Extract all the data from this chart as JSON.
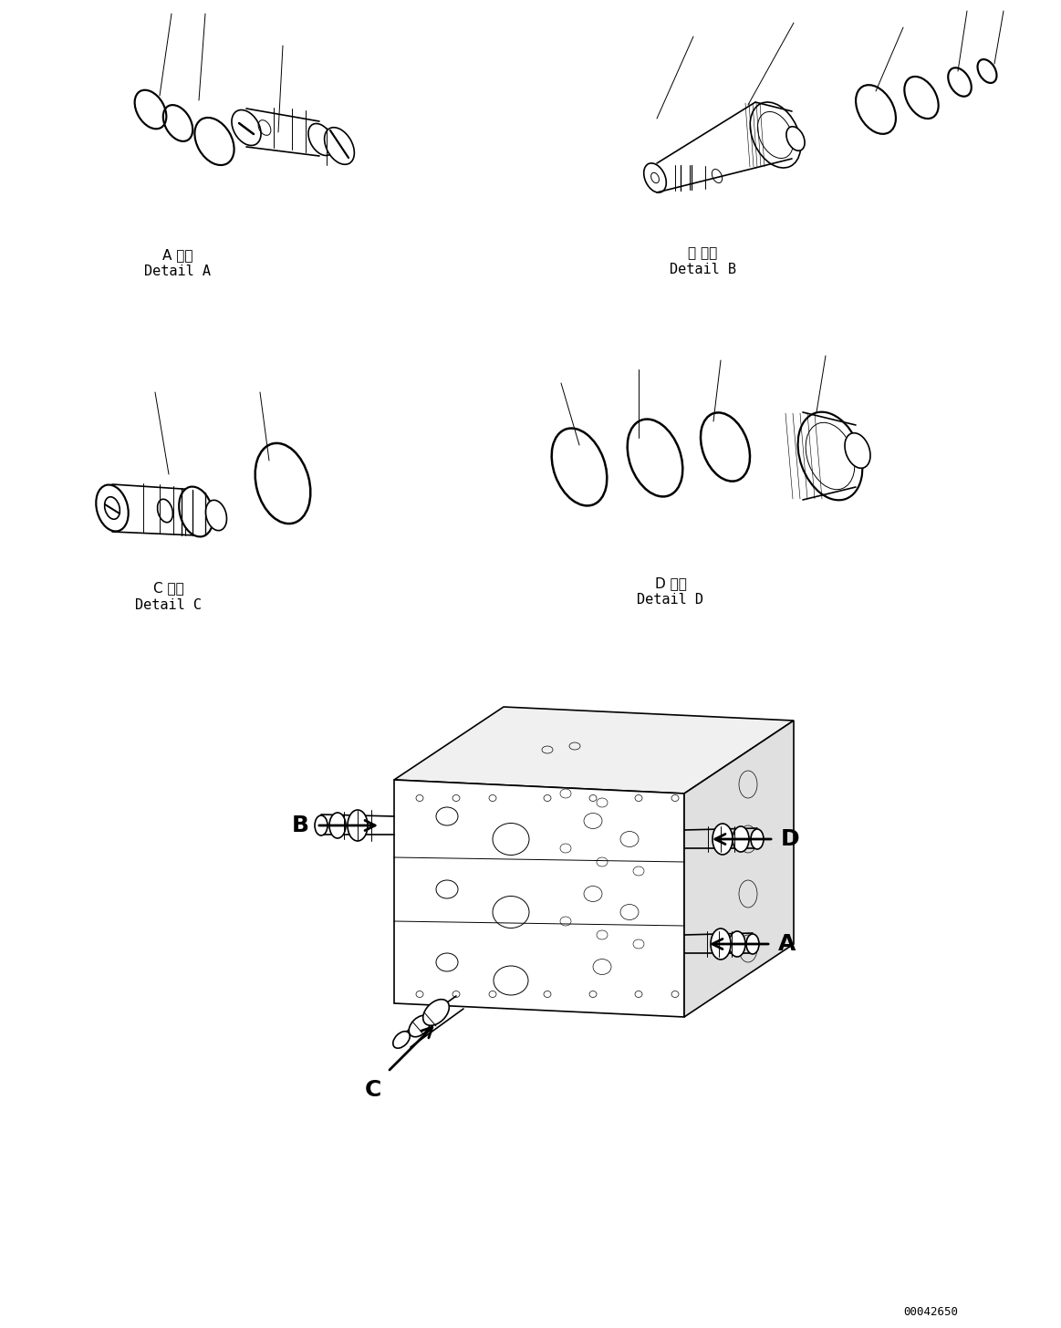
{
  "bg_color": "#ffffff",
  "line_color": "#000000",
  "fig_width": 11.63,
  "fig_height": 14.56,
  "dpi": 100,
  "label_A_jp": "A 詳細",
  "label_A_en": "Detail A",
  "label_B_jp": "日 詳細",
  "label_B_en": "Detail B",
  "label_C_jp": "C 詳細",
  "label_C_en": "Detail C",
  "label_D_jp": "D 詳細",
  "label_D_en": "Detail D",
  "watermark": "00042650"
}
